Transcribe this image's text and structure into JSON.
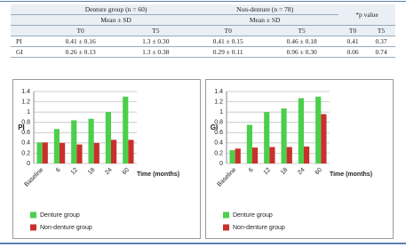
{
  "table": {
    "header": [
      "Denture group (n = 60)",
      "Non-denture (n = 78)",
      "*p value"
    ],
    "subheader": [
      "Mean ± SD",
      "Mean ± SD"
    ],
    "periods": [
      "T0",
      "T5",
      "T0",
      "T5",
      "T0",
      "T5"
    ],
    "rows": [
      [
        "PI",
        "0.41 ± 0.16",
        "1.3 ± 0.30",
        "0.41 ± 0.15",
        "0.46 ± 0.18",
        "0.41",
        "0.37"
      ],
      [
        "GI",
        "0.26 ± 0.13",
        "1.3 ± 0.38",
        "0.29 ± 0.11",
        "0.96 ± 0.30",
        "0.06",
        "0.74"
      ]
    ]
  },
  "chart_data": [
    {
      "type": "bar",
      "y_label": "PI",
      "x_label": "Time (months)",
      "categories": [
        "Baseline",
        "6",
        "12",
        "18",
        "24",
        "60"
      ],
      "series": [
        {
          "name": "Denture group",
          "color": "#4ccf4c",
          "values": [
            0.41,
            0.67,
            0.84,
            0.87,
            1.0,
            1.3
          ]
        },
        {
          "name": "Non-denture group",
          "color": "#c9302c",
          "values": [
            0.41,
            0.4,
            0.37,
            0.4,
            0.46,
            0.46
          ]
        }
      ],
      "ylim": [
        0,
        1.4
      ],
      "yticks": [
        0,
        0.2,
        0.4,
        0.6,
        0.8,
        1,
        1.2,
        1.4
      ],
      "grid": true
    },
    {
      "type": "bar",
      "y_label": "GI",
      "x_label": "Time (months)",
      "categories": [
        "Baseline",
        "6",
        "12",
        "18",
        "24",
        "60"
      ],
      "series": [
        {
          "name": "Denture group",
          "color": "#4ccf4c",
          "values": [
            0.26,
            0.75,
            1.0,
            1.07,
            1.27,
            1.3
          ]
        },
        {
          "name": "Non-denture group",
          "color": "#c9302c",
          "values": [
            0.29,
            0.31,
            0.32,
            0.32,
            0.33,
            0.96
          ]
        }
      ],
      "ylim": [
        0,
        1.4
      ],
      "yticks": [
        0,
        0.2,
        0.4,
        0.6,
        0.8,
        1,
        1.2,
        1.4
      ],
      "grid": true
    }
  ]
}
